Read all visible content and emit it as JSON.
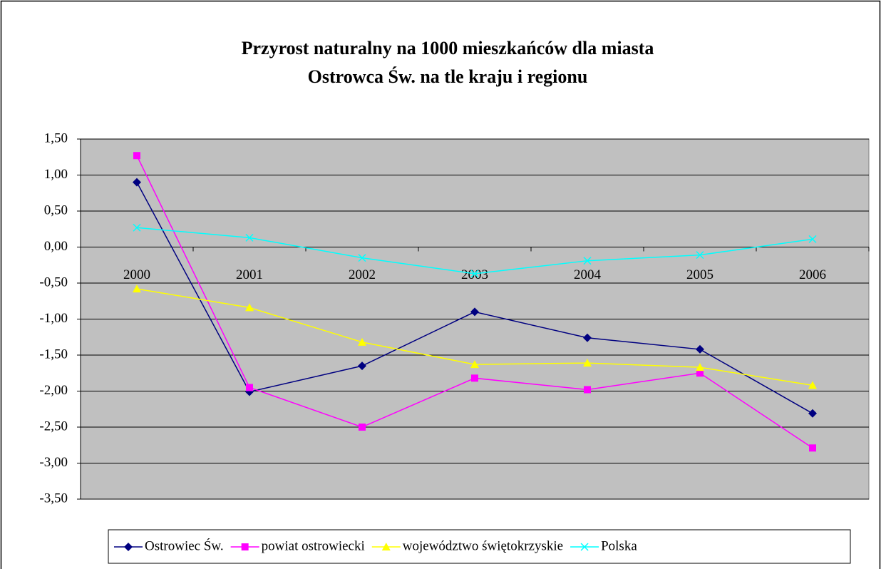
{
  "chart_data": {
    "type": "line",
    "title": [
      "Przyrost naturalny na 1000 mieszkańców dla miasta",
      "Ostrowca Św. na tle kraju i regionu"
    ],
    "categories": [
      "2000",
      "2001",
      "2002",
      "2003",
      "2004",
      "2005",
      "2006"
    ],
    "series": [
      {
        "name": "Ostrowiec Św.",
        "color": "#000080",
        "marker": "diamond",
        "values": [
          0.9,
          -2.01,
          -1.65,
          -0.9,
          -1.26,
          -1.42,
          -2.31
        ]
      },
      {
        "name": "powiat ostrowiecki",
        "color": "#ff00ff",
        "marker": "square",
        "values": [
          1.27,
          -1.95,
          -2.5,
          -1.82,
          -1.98,
          -1.75,
          -2.79
        ]
      },
      {
        "name": "województwo świętokrzyskie",
        "color": "#ffff00",
        "marker": "triangle",
        "values": [
          -0.58,
          -0.84,
          -1.32,
          -1.63,
          -1.61,
          -1.67,
          -1.92
        ]
      },
      {
        "name": "Polska",
        "color": "#00ffff",
        "marker": "x",
        "values": [
          0.27,
          0.13,
          -0.15,
          -0.37,
          -0.19,
          -0.11,
          0.11
        ]
      }
    ],
    "ylim": [
      -3.5,
      1.5
    ],
    "yticks": [
      {
        "value": 1.5,
        "label": "1,50"
      },
      {
        "value": 1,
        "label": "1,00"
      },
      {
        "value": 0.5,
        "label": "0,50"
      },
      {
        "value": 0,
        "label": "0,00"
      },
      {
        "value": -0.5,
        "label": "-0,50"
      },
      {
        "value": -1,
        "label": "-1,00"
      },
      {
        "value": -1.5,
        "label": "-1,50"
      },
      {
        "value": -2,
        "label": "-2,00"
      },
      {
        "value": -2.5,
        "label": "-2,50"
      },
      {
        "value": -3,
        "label": "-3,00"
      },
      {
        "value": -3.5,
        "label": "-3,50"
      }
    ],
    "grid": true,
    "legend": "bottom"
  }
}
